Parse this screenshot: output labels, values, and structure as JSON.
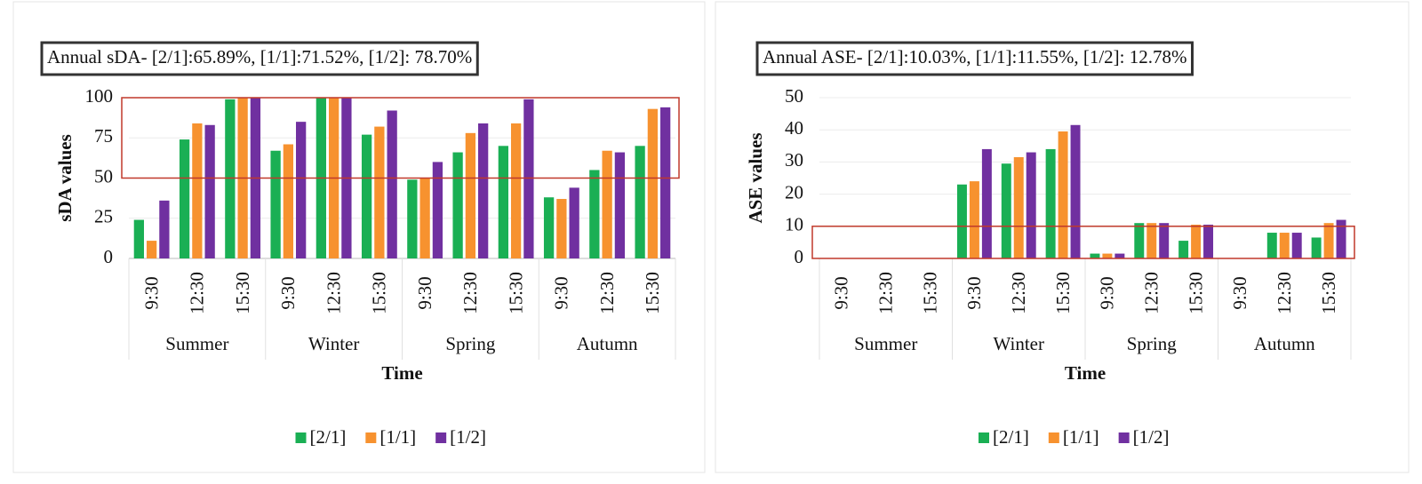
{
  "chart_data": [
    {
      "type": "bar",
      "title": "Annual sDA- [2/1]:65.89%, [1/1]:71.52%, [1/2]: 78.70%",
      "ylabel": "sDA values",
      "xlabel": "Time",
      "categories": [
        "9:30",
        "12:30",
        "15:30",
        "9:30",
        "12:30",
        "15:30",
        "9:30",
        "12:30",
        "15:30",
        "9:30",
        "12:30",
        "15:30"
      ],
      "groups": [
        "Summer",
        "Winter",
        "Spring",
        "Autumn"
      ],
      "series": [
        {
          "name": "[2/1]",
          "color": "#1aaf54",
          "values": [
            24,
            74,
            99,
            67,
            100,
            77,
            49,
            66,
            70,
            38,
            55,
            70
          ]
        },
        {
          "name": "[1/1]",
          "color": "#f7922f",
          "values": [
            11,
            84,
            100,
            71,
            100,
            82,
            50,
            78,
            84,
            37,
            67,
            93
          ]
        },
        {
          "name": "[1/2]",
          "color": "#7030a0",
          "values": [
            36,
            83,
            100,
            85,
            100,
            92,
            60,
            84,
            99,
            44,
            66,
            94
          ]
        }
      ],
      "ylim": [
        0,
        100
      ],
      "yticks": [
        0,
        25,
        50,
        75,
        100
      ],
      "grid": true,
      "highlight_ylim": [
        50,
        100
      ]
    },
    {
      "type": "bar",
      "title": "Annual ASE- [2/1]:10.03%, [1/1]:11.55%, [1/2]: 12.78%",
      "ylabel": "ASE values",
      "xlabel": "Time",
      "categories": [
        "9:30",
        "12:30",
        "15:30",
        "9:30",
        "12:30",
        "15:30",
        "9:30",
        "12:30",
        "15:30",
        "9:30",
        "12:30",
        "15:30"
      ],
      "groups": [
        "Summer",
        "Winter",
        "Spring",
        "Autumn"
      ],
      "series": [
        {
          "name": "[2/1]",
          "color": "#1aaf54",
          "values": [
            0,
            0,
            0,
            23,
            29.5,
            34,
            1.5,
            11,
            5.5,
            0,
            8,
            6.5
          ]
        },
        {
          "name": "[1/1]",
          "color": "#f7922f",
          "values": [
            0,
            0,
            0,
            24,
            31.5,
            39.5,
            1.5,
            11,
            10.5,
            0,
            8,
            11
          ]
        },
        {
          "name": "[1/2]",
          "color": "#7030a0",
          "values": [
            0,
            0,
            0,
            34,
            33,
            41.5,
            1.5,
            11,
            10.5,
            0,
            8,
            12
          ]
        }
      ],
      "ylim": [
        0,
        50
      ],
      "yticks": [
        0,
        10,
        20,
        30,
        40,
        50
      ],
      "grid": true,
      "highlight_ylim": [
        0,
        10
      ]
    }
  ]
}
